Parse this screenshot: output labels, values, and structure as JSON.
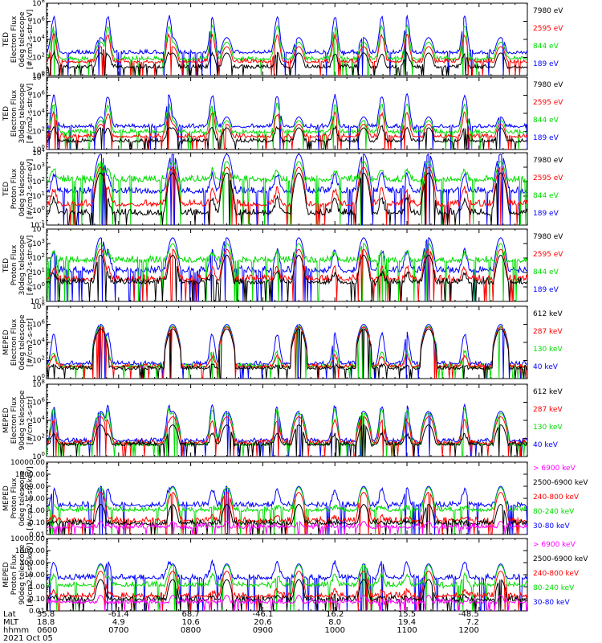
{
  "colors": {
    "blue": "#0000ff",
    "red": "#ff0000",
    "green": "#00dd00",
    "black": "#000000",
    "magenta": "#ff00ff"
  },
  "panels": [
    {
      "ylabel": [
        "TED",
        "Electron Flux",
        "0deg telescope",
        "[#/cm2-s-str-eV]"
      ],
      "ytick_labels": [
        "10^0",
        "10^2",
        "10^4",
        "10^6",
        "10^8"
      ],
      "ytick_exponents": [
        0,
        2,
        4,
        6,
        8
      ],
      "legend": [
        {
          "text": "7980 eV",
          "color": "black"
        },
        {
          "text": "2595 eV",
          "color": "red"
        },
        {
          "text": "844 eV",
          "color": "green"
        },
        {
          "text": "189 eV",
          "color": "blue"
        }
      ]
    },
    {
      "ylabel": [
        "TED",
        "Electron Flux",
        "30deg telescope",
        "[#/cm2-s-str-eV]"
      ],
      "ytick_labels": [
        "10^0",
        "10^2",
        "10^4",
        "10^6",
        "10^8"
      ],
      "ytick_exponents": [
        0,
        2,
        4,
        6,
        8
      ],
      "legend": [
        {
          "text": "7980 eV",
          "color": "black"
        },
        {
          "text": "2595 eV",
          "color": "red"
        },
        {
          "text": "844 eV",
          "color": "green"
        },
        {
          "text": "189 eV",
          "color": "blue"
        }
      ]
    },
    {
      "ylabel": [
        "TED",
        "Proton Flux",
        "0deg telescope",
        "[#/cm2-s-str-eV]"
      ],
      "ytick_labels": [
        "10^-1",
        "10^0",
        "10^1",
        "10^2",
        "10^3",
        "10^4"
      ],
      "ytick_exponents": [
        -1,
        0,
        1,
        2,
        3,
        4
      ],
      "legend": [
        {
          "text": "7980 eV",
          "color": "black"
        },
        {
          "text": "2595 eV",
          "color": "red"
        },
        {
          "text": "844 eV",
          "color": "green"
        },
        {
          "text": "189 eV",
          "color": "blue"
        }
      ]
    },
    {
      "ylabel": [
        "TED",
        "Proton Flux",
        "30deg telescope",
        "[#/cm2-s-str-eV]"
      ],
      "ytick_labels": [
        "10^-1",
        "10^0",
        "10^1",
        "10^2",
        "10^3",
        "10^4"
      ],
      "ytick_exponents": [
        -1,
        0,
        1,
        2,
        3,
        4
      ],
      "legend": [
        {
          "text": "7980 eV",
          "color": "black"
        },
        {
          "text": "2595 eV",
          "color": "red"
        },
        {
          "text": "844 eV",
          "color": "green"
        },
        {
          "text": "189 eV",
          "color": "blue"
        }
      ]
    },
    {
      "ylabel": [
        "MEPED",
        "Electron Flux",
        "0deg telescope",
        "[#/cm2-s-str]"
      ],
      "ytick_labels": [
        "10^0",
        "10^2",
        "10^4",
        "10^6",
        "10^8"
      ],
      "ytick_exponents": [
        0,
        2,
        4,
        6,
        8
      ],
      "legend": [
        {
          "text": "612 keV",
          "color": "black"
        },
        {
          "text": "287 keV",
          "color": "red"
        },
        {
          "text": "130 keV",
          "color": "green"
        },
        {
          "text": "40 keV",
          "color": "blue"
        }
      ]
    },
    {
      "ylabel": [
        "MEPED",
        "Electron Flux",
        "90deg telescope",
        "[#/cm2-s-str]"
      ],
      "ytick_labels": [
        "10^0",
        "10^2",
        "10^4",
        "10^6",
        "10^8"
      ],
      "ytick_exponents": [
        0,
        2,
        4,
        6,
        8
      ],
      "legend": [
        {
          "text": "612 keV",
          "color": "black"
        },
        {
          "text": "287 keV",
          "color": "red"
        },
        {
          "text": "130 keV",
          "color": "green"
        },
        {
          "text": "40 keV",
          "color": "blue"
        }
      ]
    },
    {
      "ylabel": [
        "MEPED",
        "Proton Flux",
        "0deg telescope",
        "[#/cm2-s-str-keV]"
      ],
      "ytick_labels": [
        "0.01",
        "0.10",
        "1.00",
        "10.00",
        "100.00",
        "1000.00",
        "10000.00"
      ],
      "ytick_exponents": [
        -2,
        -1,
        0,
        1,
        2,
        3,
        4
      ],
      "legend": [
        {
          "text": "> 6900 keV",
          "color": "magenta"
        },
        {
          "text": "2500-6900 keV",
          "color": "black"
        },
        {
          "text": "240-800 keV",
          "color": "red"
        },
        {
          "text": "80-240 keV",
          "color": "green"
        },
        {
          "text": "30-80 keV",
          "color": "blue"
        }
      ]
    },
    {
      "ylabel": [
        "MEPED",
        "Proton Flux",
        "90deg telescope",
        "[#/cm2-s-str-keV]"
      ],
      "ytick_labels": [
        "0.01",
        "0.10",
        "1.00",
        "10.00",
        "100.00",
        "1000.00",
        "10000.00"
      ],
      "ytick_exponents": [
        -2,
        -1,
        0,
        1,
        2,
        3,
        4
      ],
      "legend": [
        {
          "text": "> 6900 keV",
          "color": "magenta"
        },
        {
          "text": "2500-6900 keV",
          "color": "black"
        },
        {
          "text": "240-800 keV",
          "color": "red"
        },
        {
          "text": "80-240 keV",
          "color": "green"
        },
        {
          "text": "30-80 keV",
          "color": "blue"
        }
      ]
    }
  ],
  "footer": {
    "row_labels": [
      "Lat",
      "MLT",
      "hhmm"
    ],
    "date": "2021 Oct 05",
    "columns": [
      {
        "lat": "35.8",
        "mlt": "18.8",
        "hhmm": "0600"
      },
      {
        "lat": "-61.4",
        "mlt": "4.9",
        "hhmm": "0700"
      },
      {
        "lat": "68.7",
        "mlt": "10.6",
        "hhmm": "0800"
      },
      {
        "lat": "-46.1",
        "mlt": "20.6",
        "hhmm": "0900"
      },
      {
        "lat": "16.2",
        "mlt": "8.0",
        "hhmm": "1000"
      },
      {
        "lat": "15.5",
        "mlt": "19.4",
        "hhmm": "1100"
      },
      {
        "lat": "-48.5",
        "mlt": "7.2",
        "hhmm": "1200"
      }
    ]
  },
  "chart_data": {
    "type": "line",
    "x_axis": {
      "label": "hhmm",
      "range": [
        "0600",
        "1200"
      ],
      "ticks": [
        "0600",
        "0700",
        "0800",
        "0900",
        "1000",
        "1100",
        "1200"
      ]
    },
    "y_scale": "log",
    "pass_centers_hours": [
      6.75,
      7.75,
      8.5,
      9.5,
      10.4,
      11.3,
      12.3
    ],
    "auroral_peak_hours": [
      6.1,
      6.85,
      7.7,
      8.3,
      9.2,
      10.0,
      10.65,
      11.0,
      11.8
    ],
    "panels": [
      {
        "id": "ted-electron-0deg",
        "ylim_exp": [
          0,
          8
        ],
        "background_exp": {
          "blue": 2.4,
          "green": 1.7,
          "red": 1.4,
          "black": 0.8
        },
        "auroral_peak_exp": {
          "blue": 6.5,
          "green": 5.5,
          "red": 4.5,
          "black": 2.5
        },
        "dome_peak_exp": {
          "blue": 4.2,
          "green": 3.7,
          "red": 3.2,
          "black": 2.5
        }
      },
      {
        "id": "ted-electron-30deg",
        "ylim_exp": [
          0,
          8
        ],
        "background_exp": {
          "blue": 2.4,
          "green": 1.8,
          "red": 1.3,
          "black": 0.8
        },
        "auroral_peak_exp": {
          "blue": 6.0,
          "green": 5.0,
          "red": 4.0,
          "black": 2.5
        },
        "dome_peak_exp": {
          "blue": 3.6,
          "green": 3.2,
          "red": 2.8,
          "black": 2.4
        }
      },
      {
        "id": "ted-proton-0deg",
        "ylim_exp": [
          -1,
          4
        ],
        "background_exp": {
          "blue": 1.2,
          "green": 2.0,
          "red": 0.3,
          "black": -0.3
        },
        "auroral_peak_exp": {
          "blue": 2.5,
          "green": 2.8,
          "red": 1.5,
          "black": 0.8
        },
        "dome_peak_exp": {
          "blue": 3.9,
          "green": 3.4,
          "red": 3.0,
          "black": 2.6
        }
      },
      {
        "id": "ted-proton-30deg",
        "ylim_exp": [
          -1,
          4
        ],
        "background_exp": {
          "blue": 1.0,
          "green": 1.7,
          "red": 0.4,
          "black": 0.2
        },
        "auroral_peak_exp": {
          "blue": 2.5,
          "green": 2.4,
          "red": 1.3,
          "black": 0.9
        },
        "dome_peak_exp": {
          "blue": 3.4,
          "green": 3.0,
          "red": 2.6,
          "black": 2.2
        }
      },
      {
        "id": "meped-electron-0deg",
        "ylim_exp": [
          0,
          8
        ],
        "background_exp": {
          "blue": 1.5,
          "green": 1.2,
          "red": 1.2,
          "black": 1.0
        },
        "auroral_peak_exp": {
          "blue": 5.0,
          "green": 3.0,
          "red": 2.5,
          "black": 1.5
        },
        "dome_peak_exp": {
          "blue": 6.0,
          "green": 5.8,
          "red": 5.7,
          "black": 5.5
        }
      },
      {
        "id": "meped-electron-90deg",
        "ylim_exp": [
          0,
          8
        ],
        "background_exp": {
          "blue": 1.6,
          "green": 1.2,
          "red": 1.4,
          "black": 1.2
        },
        "auroral_peak_exp": {
          "blue": 5.6,
          "green": 5.2,
          "red": 4.0,
          "black": 2.5
        },
        "dome_peak_exp": {
          "blue": 5.0,
          "green": 4.8,
          "red": 4.4,
          "black": 3.5
        }
      },
      {
        "id": "meped-proton-0deg",
        "ylim_exp": [
          -2,
          4
        ],
        "background_exp": {
          "blue": 0.3,
          "green": -0.1,
          "red": -1.0,
          "black": -1.2,
          "magenta": -1.5
        },
        "auroral_peak_exp": {
          "blue": 1.7,
          "green": 0.3,
          "red": -0.5,
          "black": -1.0,
          "magenta": -1.4
        },
        "dome_peak_exp": {
          "blue": 2.0,
          "green": 1.9,
          "red": 1.5,
          "black": 0.5,
          "magenta": -0.9
        }
      },
      {
        "id": "meped-proton-90deg",
        "ylim_exp": [
          -2,
          4
        ],
        "background_exp": {
          "blue": 0.6,
          "green": 0.0,
          "red": -0.9,
          "black": -1.2,
          "magenta": -1.4
        },
        "auroral_peak_exp": {
          "blue": 2.0,
          "green": 1.0,
          "red": -0.3,
          "black": -0.8,
          "magenta": -1.3
        },
        "dome_peak_exp": {
          "blue": 1.9,
          "green": 1.8,
          "red": 1.3,
          "black": 0.6,
          "magenta": -0.7
        }
      }
    ]
  }
}
